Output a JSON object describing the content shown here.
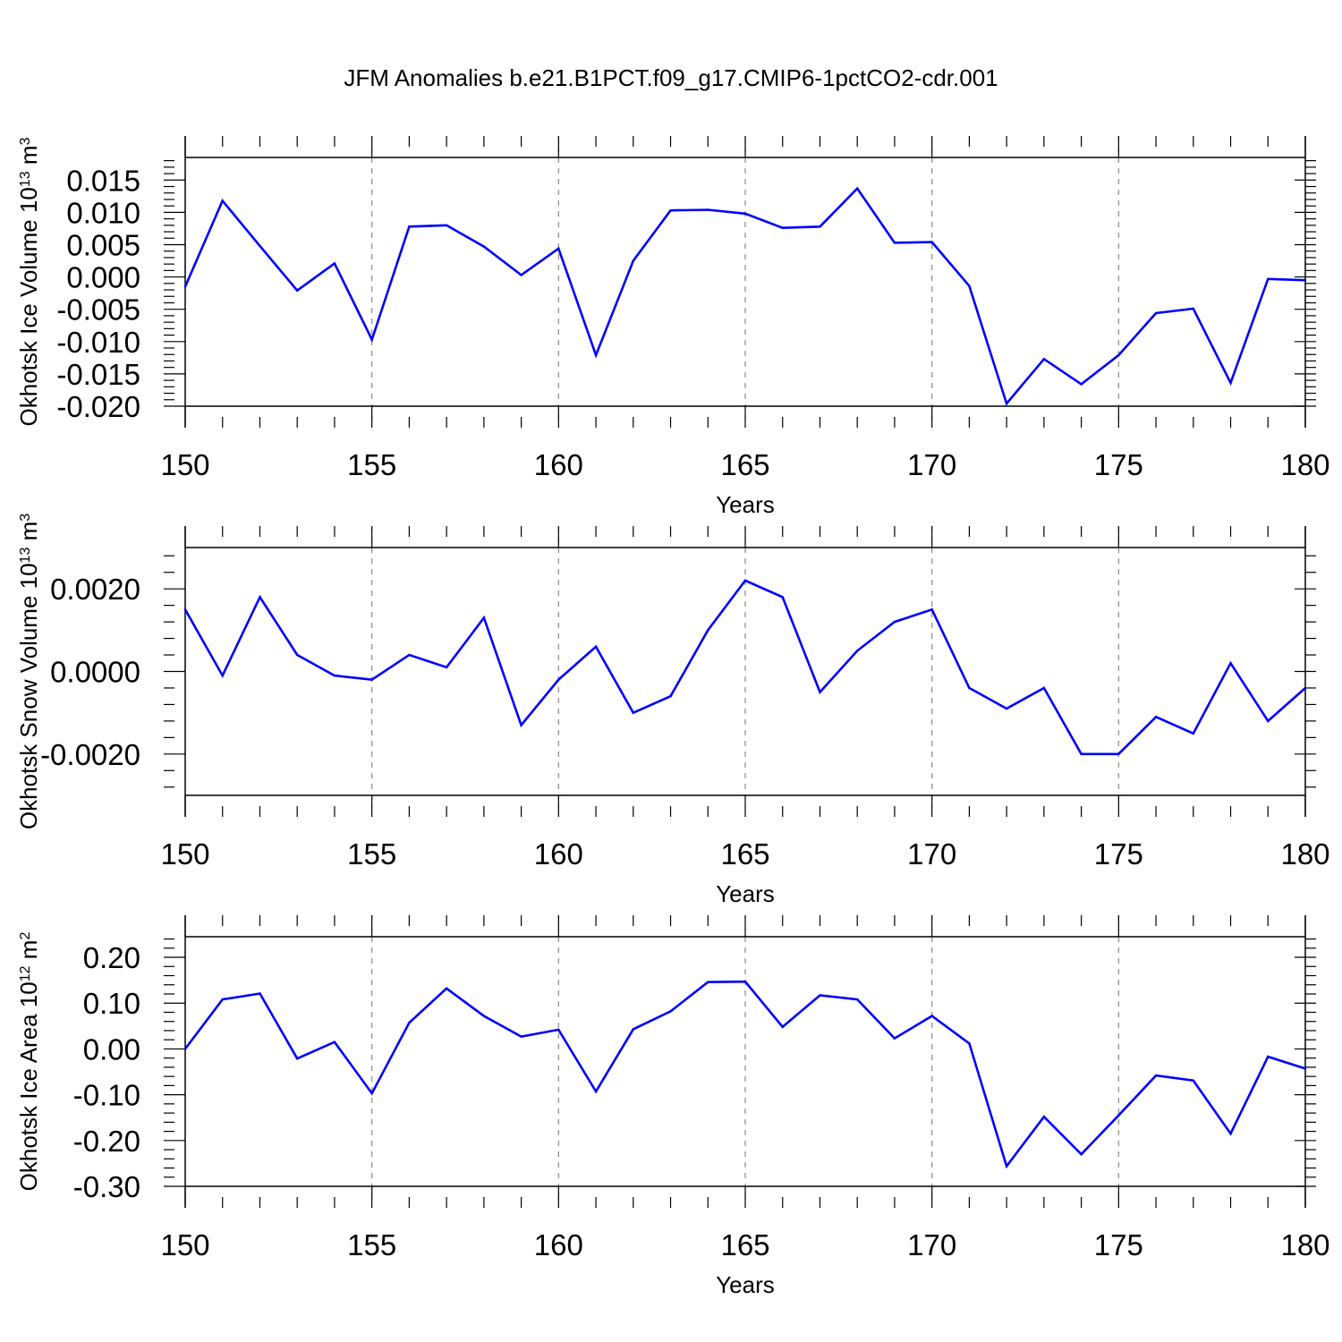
{
  "title": "JFM Anomalies b.e21.B1PCT.f09_g17.CMIP6-1pctCO2-cdr.001",
  "chart_data": [
    {
      "type": "line",
      "xlabel": "Years",
      "ylabel": "Okhotsk Ice Volume 10",
      "ylabel_exp": "13",
      "ylabel_unit": " m",
      "ylabel_unit_exp": "3",
      "xlim": [
        150,
        180
      ],
      "ylim": [
        -0.02,
        0.0185
      ],
      "xticks": [
        150,
        155,
        160,
        165,
        170,
        175,
        180
      ],
      "yticks": [
        -0.02,
        -0.015,
        -0.01,
        -0.005,
        0.0,
        0.005,
        0.01,
        0.015
      ],
      "ytick_labels": [
        "-0.020",
        "-0.015",
        "-0.010",
        "-0.005",
        "0.000",
        "0.005",
        "0.010",
        "0.015"
      ],
      "grid": "dashed vertical at major x ticks",
      "color": "#0000ff",
      "x": [
        150,
        151,
        152,
        153,
        154,
        155,
        156,
        157,
        158,
        159,
        160,
        161,
        162,
        163,
        164,
        165,
        166,
        167,
        168,
        169,
        170,
        171,
        172,
        173,
        174,
        175,
        176,
        177,
        178,
        179,
        180
      ],
      "y": [
        -0.0015,
        0.0118,
        0.0048,
        -0.0021,
        0.0021,
        -0.0097,
        0.0078,
        0.008,
        0.0047,
        0.0003,
        0.0044,
        -0.0121,
        0.0025,
        0.0103,
        0.0104,
        0.0098,
        0.0076,
        0.0078,
        0.0137,
        0.0053,
        0.0054,
        -0.0014,
        -0.0196,
        -0.0127,
        -0.0166,
        -0.0121,
        -0.0056,
        -0.0049,
        -0.0164,
        -0.0003,
        -0.0005
      ]
    },
    {
      "type": "line",
      "xlabel": "Years",
      "ylabel": "Okhotsk Snow Volume 10",
      "ylabel_exp": "13",
      "ylabel_unit": " m",
      "ylabel_unit_exp": "3",
      "xlim": [
        150,
        180
      ],
      "ylim": [
        -0.003,
        0.003
      ],
      "xticks": [
        150,
        155,
        160,
        165,
        170,
        175,
        180
      ],
      "yticks": [
        -0.002,
        0.0,
        0.002
      ],
      "ytick_labels": [
        "-0.0020",
        "0.0000",
        "0.0020"
      ],
      "grid": "dashed vertical at major x ticks",
      "color": "#0000ff",
      "x": [
        150,
        151,
        152,
        153,
        154,
        155,
        156,
        157,
        158,
        159,
        160,
        161,
        162,
        163,
        164,
        165,
        166,
        167,
        168,
        169,
        170,
        171,
        172,
        173,
        174,
        175,
        176,
        177,
        178,
        179,
        180
      ],
      "y": [
        0.0015,
        -0.0001,
        0.0018,
        0.0004,
        -0.0001,
        -0.0002,
        0.0004,
        0.0001,
        0.0013,
        -0.0013,
        -0.0002,
        0.0006,
        -0.001,
        -0.0006,
        0.001,
        0.0022,
        0.0018,
        -0.0005,
        0.0005,
        0.0012,
        0.0015,
        -0.0004,
        -0.0009,
        -0.0004,
        -0.002,
        -0.002,
        -0.0011,
        -0.0015,
        0.0002,
        -0.0012,
        -0.0004
      ]
    },
    {
      "type": "line",
      "xlabel": "Years",
      "ylabel": "Okhotsk Ice Area 10",
      "ylabel_exp": "12",
      "ylabel_unit": " m",
      "ylabel_unit_exp": "2",
      "xlim": [
        150,
        180
      ],
      "ylim": [
        -0.3,
        0.245
      ],
      "xticks": [
        150,
        155,
        160,
        165,
        170,
        175,
        180
      ],
      "yticks": [
        -0.3,
        -0.2,
        -0.1,
        0.0,
        0.1,
        0.2
      ],
      "ytick_labels": [
        "-0.30",
        "-0.20",
        "-0.10",
        "0.00",
        "0.10",
        "0.20"
      ],
      "grid": "dashed vertical at major x ticks",
      "color": "#0000ff",
      "x": [
        150,
        151,
        152,
        153,
        154,
        155,
        156,
        157,
        158,
        159,
        160,
        161,
        162,
        163,
        164,
        165,
        166,
        167,
        168,
        169,
        170,
        171,
        172,
        173,
        174,
        175,
        176,
        177,
        178,
        179,
        180
      ],
      "y": [
        0.0,
        0.108,
        0.121,
        -0.021,
        0.015,
        -0.097,
        0.057,
        0.132,
        0.072,
        0.027,
        0.042,
        -0.093,
        0.043,
        0.082,
        0.146,
        0.147,
        0.048,
        0.117,
        0.108,
        0.023,
        0.072,
        0.012,
        -0.256,
        -0.148,
        -0.23,
        -0.145,
        -0.058,
        -0.069,
        -0.185,
        -0.017,
        -0.043
      ]
    }
  ]
}
